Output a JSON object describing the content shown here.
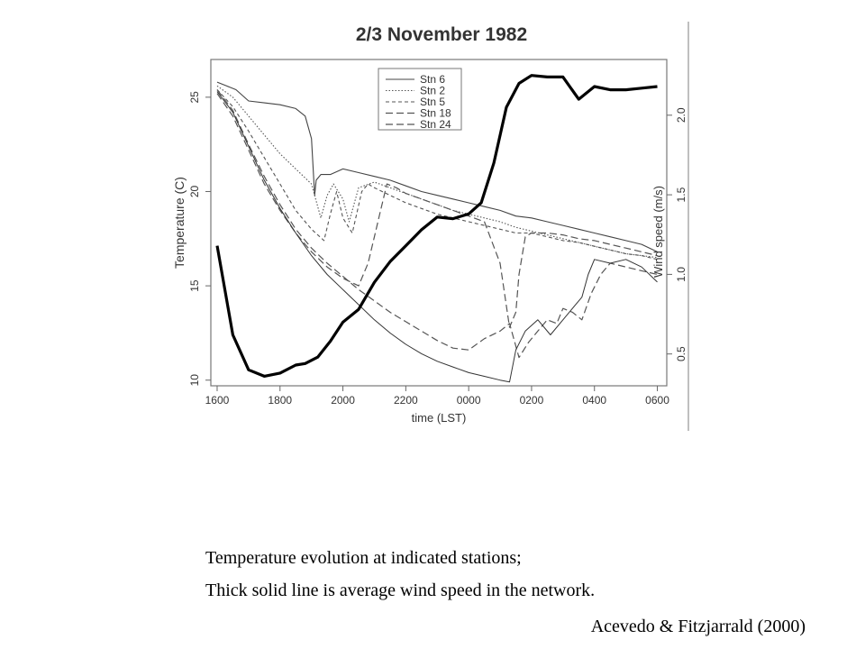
{
  "chart_data": {
    "type": "line",
    "title": "2/3 November 1982",
    "xlabel": "time (LST)",
    "ylabel_left": "Temperature (C)",
    "ylabel_right": "Wind speed (m/s)",
    "x_ticks": [
      "1600",
      "1800",
      "2000",
      "2200",
      "0000",
      "0200",
      "0400",
      "0600"
    ],
    "x_range_hours": [
      15.8,
      30.3
    ],
    "y_left_ticks": [
      "10",
      "15",
      "20",
      "25"
    ],
    "y_left_range": [
      9.7,
      27.0
    ],
    "y_right_ticks": [
      "0.5",
      "1.0",
      "1.5",
      "2.0"
    ],
    "y_right_range": [
      0.3,
      2.35
    ],
    "legend": {
      "position": "top-center",
      "entries": [
        "Stn 6",
        "Stn 2",
        "Stn 5",
        "Stn 18",
        "Stn 24"
      ]
    },
    "series": [
      {
        "name": "Stn 6",
        "axis": "left",
        "dash": "solid",
        "x": [
          16.0,
          16.3,
          16.6,
          17.0,
          17.5,
          18.0,
          18.5,
          18.8,
          19.0,
          19.1,
          19.15,
          19.3,
          19.6,
          20.0,
          20.5,
          21.0,
          21.5,
          22.0,
          22.5,
          23.0,
          23.5,
          24.0,
          24.5,
          25.0,
          25.5,
          26.0,
          26.5,
          27.0,
          27.5,
          28.0,
          28.5,
          29.0,
          29.5,
          30.0
        ],
        "y": [
          25.8,
          25.6,
          25.4,
          24.8,
          24.7,
          24.6,
          24.4,
          24.0,
          22.8,
          19.8,
          20.6,
          20.9,
          20.9,
          21.2,
          21.0,
          20.8,
          20.6,
          20.3,
          20.0,
          19.8,
          19.6,
          19.4,
          19.2,
          19.0,
          18.7,
          18.6,
          18.4,
          18.2,
          18.0,
          17.8,
          17.6,
          17.4,
          17.2,
          16.8
        ]
      },
      {
        "name": "Stn 2",
        "axis": "left",
        "dash": "dotted",
        "x": [
          16.0,
          16.5,
          17.0,
          17.5,
          18.0,
          18.5,
          19.0,
          19.3,
          19.5,
          19.7,
          20.0,
          20.2,
          20.5,
          21.0,
          21.5,
          22.0,
          22.5,
          23.0,
          23.5,
          24.0,
          24.5,
          25.0,
          25.5,
          26.0,
          26.5,
          27.0,
          27.5,
          28.0,
          28.5,
          29.0,
          29.5,
          30.0
        ],
        "y": [
          25.6,
          25.0,
          24.0,
          23.0,
          22.0,
          21.2,
          20.4,
          18.6,
          19.8,
          20.4,
          19.6,
          18.4,
          20.2,
          20.5,
          20.2,
          19.9,
          19.6,
          19.3,
          19.0,
          18.8,
          18.6,
          18.4,
          18.1,
          17.9,
          17.7,
          17.5,
          17.3,
          17.1,
          16.9,
          16.7,
          16.6,
          16.5
        ]
      },
      {
        "name": "Stn 5",
        "axis": "left",
        "dash": "short-dash",
        "x": [
          16.0,
          16.5,
          17.0,
          17.5,
          18.0,
          18.5,
          19.0,
          19.4,
          19.6,
          19.8,
          20.0,
          20.3,
          20.6,
          20.8,
          21.0,
          21.5,
          22.0,
          22.5,
          23.0,
          23.5,
          24.0,
          24.5,
          25.0,
          25.5,
          26.0,
          26.5,
          27.0,
          27.5,
          28.0,
          28.5,
          29.0,
          29.5,
          30.0
        ],
        "y": [
          25.4,
          24.5,
          23.2,
          21.8,
          20.4,
          19.0,
          18.0,
          17.4,
          18.8,
          20.0,
          18.6,
          17.8,
          20.0,
          20.4,
          20.2,
          19.8,
          19.4,
          19.1,
          18.8,
          18.6,
          18.4,
          18.2,
          18.0,
          17.8,
          17.8,
          17.6,
          17.4,
          17.3,
          17.1,
          16.9,
          16.7,
          16.6,
          16.4
        ]
      },
      {
        "name": "Stn 18",
        "axis": "left",
        "dash": "long-dash",
        "x": [
          16.0,
          16.5,
          17.0,
          17.5,
          18.0,
          18.5,
          19.0,
          19.5,
          20.0,
          20.5,
          20.8,
          21.0,
          21.2,
          21.4,
          21.7,
          22.0,
          22.5,
          23.0,
          23.5,
          24.0,
          24.5,
          25.0,
          25.3,
          25.5,
          25.6,
          25.8,
          26.0,
          26.5,
          27.0,
          27.5,
          28.0,
          28.5,
          29.0,
          29.5,
          30.0
        ],
        "y": [
          25.2,
          24.0,
          22.2,
          20.4,
          19.0,
          17.8,
          16.8,
          16.0,
          15.4,
          15.0,
          16.2,
          17.6,
          19.0,
          20.4,
          20.2,
          19.9,
          19.6,
          19.3,
          19.0,
          18.7,
          18.4,
          16.2,
          12.8,
          13.6,
          15.6,
          17.6,
          17.8,
          17.8,
          17.7,
          17.5,
          17.4,
          17.2,
          17.0,
          16.8,
          16.6
        ]
      },
      {
        "name": "Stn 24",
        "axis": "left",
        "dash": "long-dash",
        "x": [
          16.0,
          16.5,
          17.0,
          17.5,
          18.0,
          18.5,
          19.0,
          19.5,
          20.0,
          20.5,
          21.0,
          21.5,
          22.0,
          22.5,
          23.0,
          23.5,
          24.0,
          24.5,
          25.0,
          25.3,
          25.6,
          25.9,
          26.2,
          26.5,
          26.8,
          27.0,
          27.3,
          27.6,
          27.9,
          28.2,
          28.5,
          29.0,
          29.5,
          30.0
        ],
        "y": [
          25.4,
          24.3,
          22.5,
          20.8,
          19.3,
          18.0,
          17.0,
          16.2,
          15.5,
          14.8,
          14.2,
          13.6,
          13.1,
          12.6,
          12.1,
          11.7,
          11.6,
          12.2,
          12.6,
          13.0,
          11.2,
          12.0,
          12.6,
          13.2,
          13.0,
          13.8,
          13.6,
          13.2,
          14.6,
          15.6,
          16.2,
          16.0,
          15.8,
          15.6
        ]
      },
      {
        "name": "",
        "axis": "left",
        "dash": "solid-thin",
        "x": [
          16.0,
          16.5,
          17.0,
          17.5,
          18.0,
          18.5,
          19.0,
          19.5,
          20.0,
          20.5,
          21.0,
          21.5,
          22.0,
          22.5,
          23.0,
          23.5,
          24.0,
          24.5,
          25.0,
          25.3,
          25.5,
          25.8,
          26.2,
          26.6,
          27.0,
          27.3,
          27.6,
          27.8,
          28.0,
          28.5,
          29.0,
          29.5,
          30.0
        ],
        "y": [
          25.3,
          24.2,
          22.4,
          20.6,
          19.1,
          17.8,
          16.6,
          15.6,
          14.8,
          14.0,
          13.2,
          12.5,
          11.9,
          11.4,
          11.0,
          10.7,
          10.4,
          10.2,
          10.0,
          9.9,
          11.6,
          12.6,
          13.2,
          12.4,
          13.2,
          13.8,
          14.4,
          15.6,
          16.4,
          16.2,
          16.4,
          16.0,
          15.2
        ]
      },
      {
        "name": "",
        "axis": "right",
        "dash": "thick",
        "x": [
          16.0,
          16.5,
          17.0,
          17.5,
          18.0,
          18.5,
          18.8,
          19.2,
          19.6,
          20.0,
          20.5,
          21.0,
          21.5,
          22.0,
          22.5,
          23.0,
          23.5,
          24.0,
          24.4,
          24.8,
          25.2,
          25.6,
          26.0,
          26.5,
          27.0,
          27.5,
          28.0,
          28.5,
          29.0,
          29.5,
          30.0
        ],
        "y": [
          1.18,
          0.62,
          0.4,
          0.36,
          0.38,
          0.43,
          0.44,
          0.48,
          0.58,
          0.7,
          0.78,
          0.95,
          1.08,
          1.18,
          1.28,
          1.36,
          1.35,
          1.38,
          1.45,
          1.7,
          2.05,
          2.2,
          2.25,
          2.24,
          2.24,
          2.1,
          2.18,
          2.16,
          2.16,
          2.17,
          2.18
        ]
      }
    ]
  },
  "caption": {
    "line1": "Temperature evolution at indicated stations;",
    "line2": "Thick solid line is average wind speed in the network.",
    "citation": "Acevedo & Fitzjarrald (2000)"
  }
}
